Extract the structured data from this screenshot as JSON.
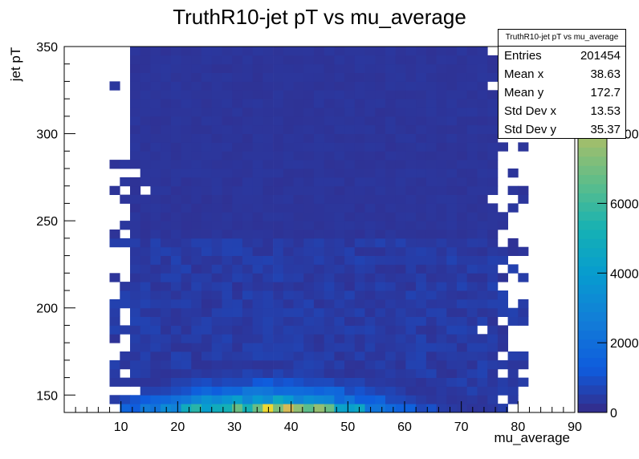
{
  "chart_data": {
    "type": "heatmap",
    "title": "TruthR10-jet pT vs mu_average",
    "xlabel": "mu_average",
    "ylabel": "jet pT",
    "xlim": [
      0,
      90
    ],
    "ylim": [
      140,
      350
    ],
    "x_ticks": [
      "10",
      "20",
      "30",
      "40",
      "50",
      "60",
      "70",
      "80",
      "90"
    ],
    "y_ticks": [
      "150",
      "200",
      "250",
      "300",
      "350"
    ],
    "z_ticks": [
      "0",
      "2000",
      "4000",
      "6000",
      "8000"
    ],
    "z_max": 10500,
    "grid": false,
    "palette": "kBird",
    "stats": {
      "title": "TruthR10-jet pT vs mu_average",
      "rows": [
        {
          "label": "Entries",
          "value": "201454"
        },
        {
          "label": "Mean x",
          "value": "38.63"
        },
        {
          "label": "Mean y",
          "value": "172.7"
        },
        {
          "label": "Std Dev x",
          "value": "13.53"
        },
        {
          "label": "Std Dev y",
          "value": "35.37"
        }
      ]
    },
    "bin_width_x": 1.8,
    "bin_width_y": 5,
    "x_populated": [
      8,
      81
    ],
    "peak_x": 36,
    "peak_y": 142.5
  }
}
